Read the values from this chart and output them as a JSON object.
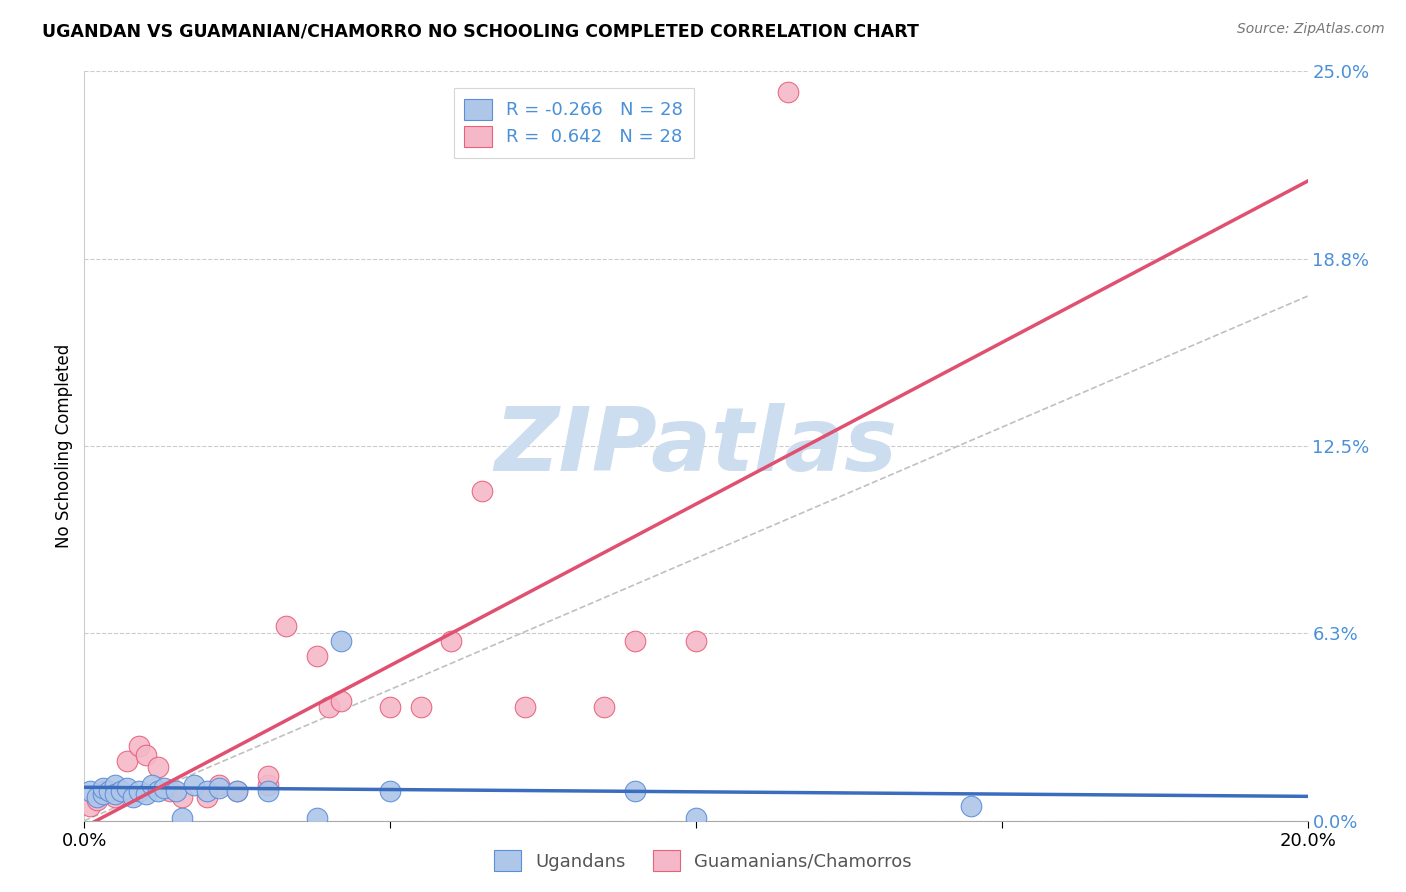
{
  "title": "UGANDAN VS GUAMANIAN/CHAMORRO NO SCHOOLING COMPLETED CORRELATION CHART",
  "source": "Source: ZipAtlas.com",
  "ylabel": "No Schooling Completed",
  "xlim": [
    0.0,
    0.2
  ],
  "ylim": [
    0.0,
    0.25
  ],
  "r_ugandan": -0.266,
  "r_guamanian": 0.642,
  "n_ugandan": 28,
  "n_guamanian": 28,
  "color_ugandan_fill": "#aec6e8",
  "color_ugandan_edge": "#5b8dd9",
  "color_guamanian_fill": "#f5b8c8",
  "color_guamanian_edge": "#e8607a",
  "color_line_ugandan": "#3b6dbf",
  "color_line_guamanian": "#e05070",
  "color_text_blue": "#4a90d9",
  "watermark_color": "#ccddf0",
  "ugandan_x": [
    0.001,
    0.002,
    0.003,
    0.003,
    0.004,
    0.005,
    0.005,
    0.006,
    0.007,
    0.008,
    0.009,
    0.01,
    0.011,
    0.012,
    0.013,
    0.015,
    0.016,
    0.018,
    0.02,
    0.022,
    0.025,
    0.03,
    0.038,
    0.042,
    0.05,
    0.09,
    0.1,
    0.145
  ],
  "ugandan_y": [
    0.01,
    0.008,
    0.009,
    0.011,
    0.01,
    0.012,
    0.009,
    0.01,
    0.011,
    0.008,
    0.01,
    0.009,
    0.012,
    0.01,
    0.011,
    0.01,
    0.001,
    0.012,
    0.01,
    0.011,
    0.01,
    0.01,
    0.001,
    0.06,
    0.01,
    0.01,
    0.001,
    0.005
  ],
  "guamanian_x": [
    0.001,
    0.002,
    0.003,
    0.005,
    0.007,
    0.009,
    0.01,
    0.012,
    0.014,
    0.016,
    0.02,
    0.022,
    0.025,
    0.03,
    0.03,
    0.033,
    0.038,
    0.04,
    0.042,
    0.05,
    0.055,
    0.06,
    0.065,
    0.072,
    0.085,
    0.09,
    0.1,
    0.115
  ],
  "guamanian_y": [
    0.005,
    0.007,
    0.01,
    0.008,
    0.02,
    0.025,
    0.022,
    0.018,
    0.01,
    0.008,
    0.008,
    0.012,
    0.01,
    0.012,
    0.015,
    0.065,
    0.055,
    0.038,
    0.04,
    0.038,
    0.038,
    0.06,
    0.11,
    0.038,
    0.038,
    0.06,
    0.06,
    0.243
  ],
  "diag_line_x": [
    0.0,
    0.2
  ],
  "diag_line_y": [
    0.0,
    0.175
  ],
  "ytick_positions": [
    0.0,
    0.0625,
    0.125,
    0.1875,
    0.25
  ],
  "ytick_labels": [
    "0.0%",
    "6.3%",
    "12.5%",
    "18.8%",
    "25.0%"
  ]
}
